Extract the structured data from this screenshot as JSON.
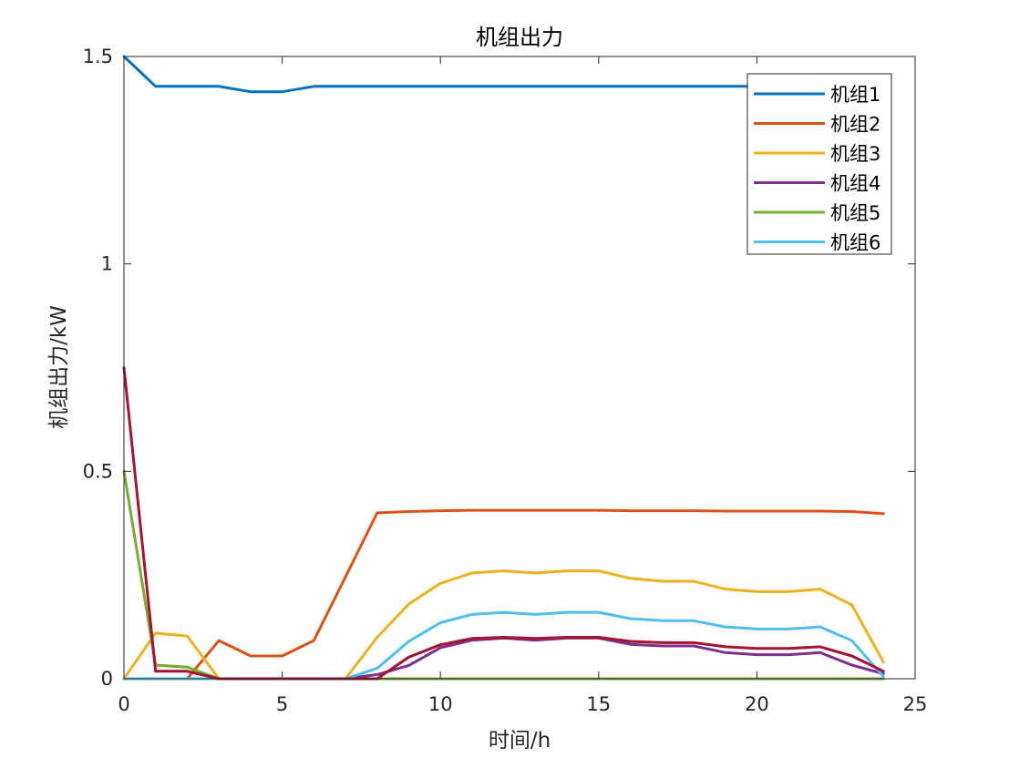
{
  "chart_data": {
    "type": "line",
    "title": "机组出力",
    "xlabel": "时间/h",
    "ylabel": "机组出力/kW",
    "xlim": [
      0,
      25
    ],
    "ylim": [
      0,
      1.5
    ],
    "xticks": [
      0,
      5,
      10,
      15,
      20,
      25
    ],
    "yticks": [
      0,
      0.5,
      1,
      1.5
    ],
    "xtick_labels": [
      "0",
      "5",
      "10",
      "15",
      "20",
      "25"
    ],
    "ytick_labels": [
      "0",
      "0.5",
      "1",
      "1.5"
    ],
    "grid": false,
    "legend_position": "top-right",
    "x": [
      0,
      1,
      2,
      3,
      4,
      5,
      6,
      7,
      8,
      9,
      10,
      11,
      12,
      13,
      14,
      15,
      16,
      17,
      18,
      19,
      20,
      21,
      22,
      23,
      24
    ],
    "series": [
      {
        "name": "机组1",
        "color": "#0072BD",
        "values": [
          1.5,
          1.428,
          1.428,
          1.428,
          1.415,
          1.415,
          1.428,
          1.428,
          1.428,
          1.428,
          1.428,
          1.428,
          1.428,
          1.428,
          1.428,
          1.428,
          1.428,
          1.428,
          1.428,
          1.428,
          1.428,
          1.428,
          1.428,
          1.428,
          1.428
        ]
      },
      {
        "name": "机组2",
        "color": "#D95319",
        "values": [
          null,
          null,
          0,
          0.092,
          0.055,
          0.055,
          0.092,
          0.245,
          0.4,
          0.403,
          0.405,
          0.406,
          0.406,
          0.406,
          0.406,
          0.406,
          0.405,
          0.405,
          0.405,
          0.404,
          0.404,
          0.404,
          0.404,
          0.403,
          0.398
        ]
      },
      {
        "name": "机组3",
        "color": "#EDB120",
        "values": [
          0,
          0.11,
          0.103,
          0,
          0,
          0,
          0,
          0,
          0.1,
          0.18,
          0.23,
          0.255,
          0.26,
          0.255,
          0.26,
          0.26,
          0.242,
          0.235,
          0.235,
          0.216,
          0.21,
          0.21,
          0.216,
          0.178,
          0.04
        ]
      },
      {
        "name": "机组4",
        "color": "#7E2F8E",
        "values": [
          null,
          null,
          null,
          0,
          0,
          0,
          0,
          0,
          0.01,
          0.032,
          0.075,
          0.093,
          0.098,
          0.093,
          0.098,
          0.098,
          0.083,
          0.079,
          0.079,
          0.063,
          0.058,
          0.058,
          0.063,
          0.033,
          0.012
        ]
      },
      {
        "name": "机组5",
        "color": "#77AC30",
        "values": [
          0.5,
          0.033,
          0.028,
          0,
          0,
          0,
          0,
          0,
          0,
          0,
          0,
          0,
          0,
          0,
          0,
          0,
          0,
          0,
          0,
          0,
          0,
          0,
          0,
          0,
          0
        ]
      },
      {
        "name": "机组6",
        "color": "#4DBEEE",
        "values": [
          0,
          0,
          0,
          0,
          0,
          0,
          0,
          0,
          0.025,
          0.09,
          0.135,
          0.155,
          0.16,
          0.155,
          0.16,
          0.16,
          0.145,
          0.14,
          0.14,
          0.125,
          0.12,
          0.12,
          0.125,
          0.092,
          0.005
        ]
      },
      {
        "name": "",
        "color": "#A2142F",
        "values": [
          0.75,
          0.018,
          0.018,
          0,
          0,
          0,
          0,
          0,
          0,
          0.052,
          0.082,
          0.097,
          0.1,
          0.097,
          0.1,
          0.1,
          0.09,
          0.087,
          0.087,
          0.077,
          0.073,
          0.073,
          0.077,
          0.055,
          0.018
        ]
      }
    ]
  }
}
